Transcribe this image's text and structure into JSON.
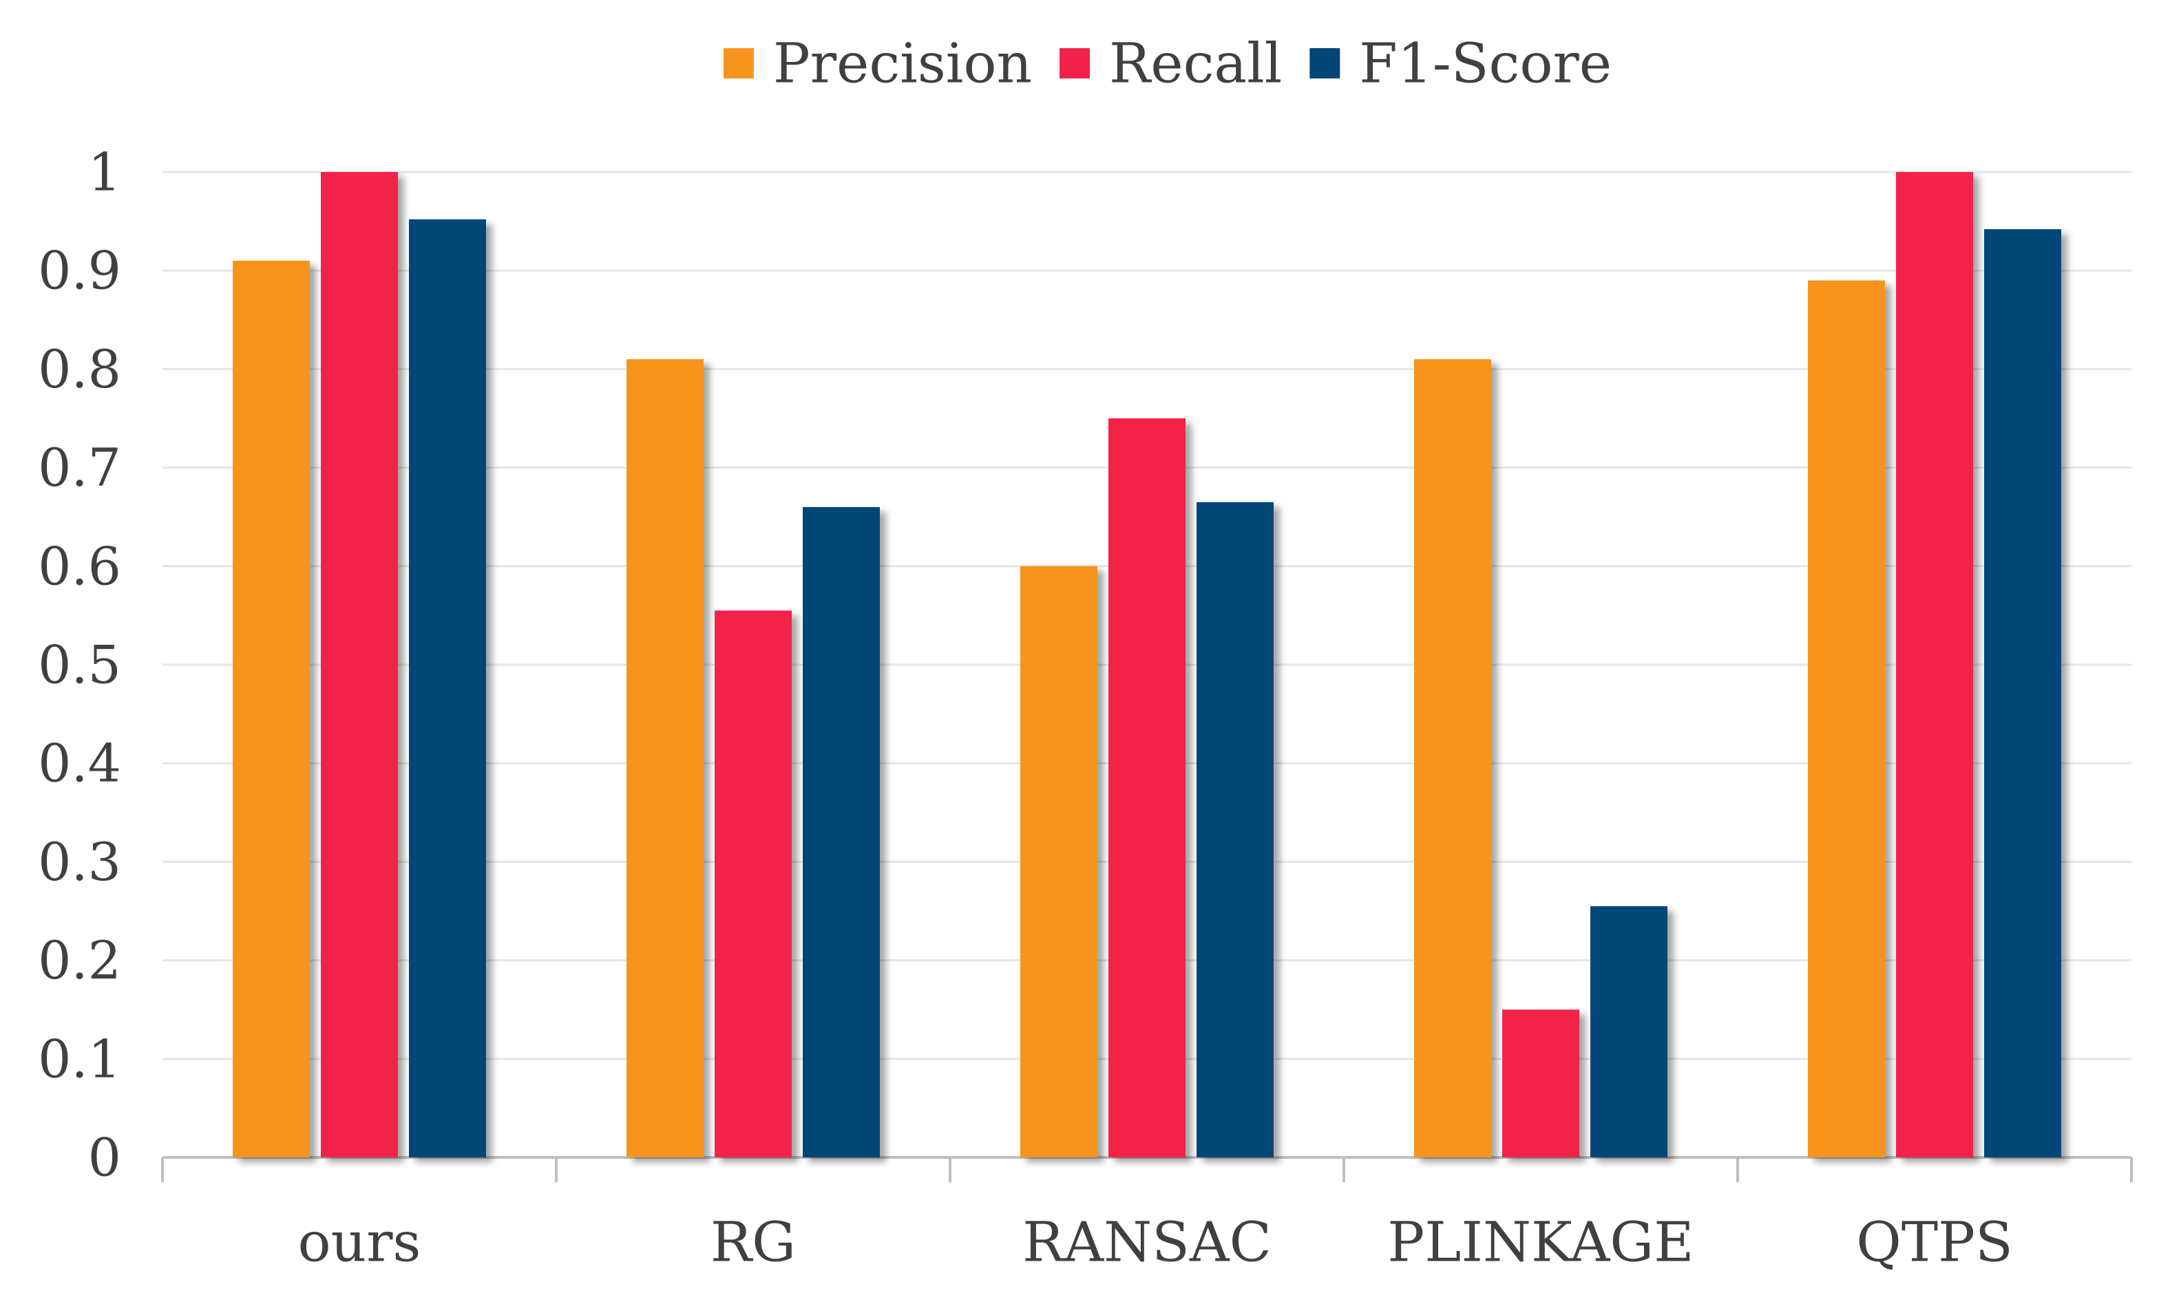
{
  "chart_data": {
    "type": "bar",
    "title": "",
    "xlabel": "",
    "ylabel": "",
    "categories": [
      "ours",
      "RG",
      "RANSAC",
      "PLINKAGE",
      "QTPS"
    ],
    "series": [
      {
        "name": "Precision",
        "color": "#F7941D",
        "values": [
          0.91,
          0.81,
          0.6,
          0.81,
          0.89
        ]
      },
      {
        "name": "Recall",
        "color": "#F2214A",
        "values": [
          1.0,
          0.555,
          0.75,
          0.15,
          1.0
        ]
      },
      {
        "name": "F1-Score",
        "color": "#004677",
        "values": [
          0.952,
          0.66,
          0.665,
          0.255,
          0.942
        ]
      }
    ],
    "ylim": [
      0,
      1
    ],
    "yticks": [
      "0",
      "0.1",
      "0.2",
      "0.3",
      "0.4",
      "0.5",
      "0.6",
      "0.7",
      "0.8",
      "0.9",
      "1"
    ],
    "ytick_values": [
      0,
      0.1,
      0.2,
      0.3,
      0.4,
      0.5,
      0.6,
      0.7,
      0.8,
      0.9,
      1
    ],
    "grid": true,
    "legend_position": "top-center"
  }
}
